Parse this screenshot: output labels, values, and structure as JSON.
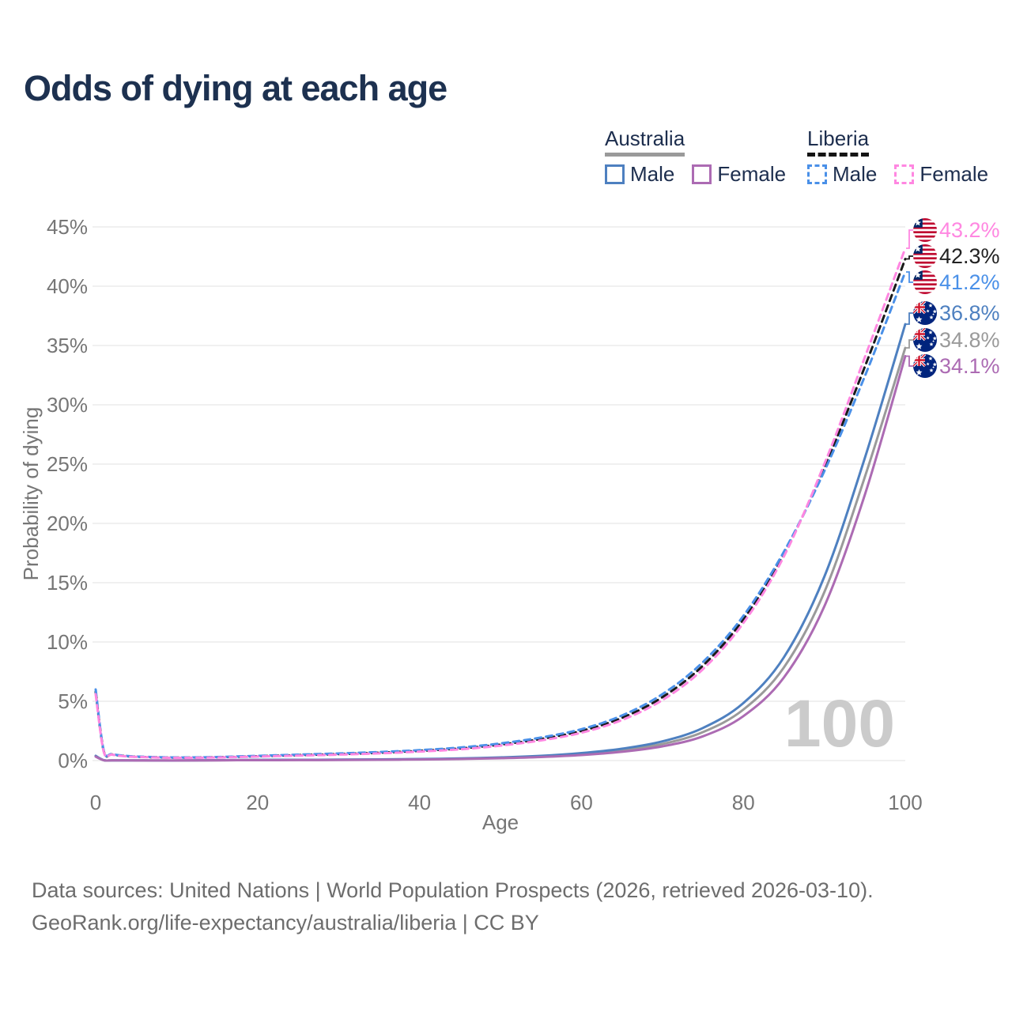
{
  "title": "Odds of dying at each age",
  "watermark_age": "100",
  "legend": {
    "groups": [
      {
        "label": "Australia",
        "underline_color": "#9a9a9a",
        "underline_style": "solid",
        "items": [
          {
            "label": "Male",
            "color": "#4e80c0",
            "dash": false
          },
          {
            "label": "Female",
            "color": "#ac6bb3",
            "dash": false
          }
        ]
      },
      {
        "label": "Liberia",
        "underline_color": "#141414",
        "underline_style": "dashed",
        "items": [
          {
            "label": "Male",
            "color": "#4a90e8",
            "dash": true
          },
          {
            "label": "Female",
            "color": "#ff87e1",
            "dash": true
          }
        ]
      }
    ]
  },
  "footer": {
    "line1": "Data sources: United Nations | World Population Prospects (2026, retrieved 2026-03-10).",
    "line2": "GeoRank.org/life-expectancy/australia/liberia | CC BY"
  },
  "chart_data": {
    "type": "line",
    "title": "Odds of dying at each age",
    "xlabel": "Age",
    "ylabel": "Probability of dying",
    "xlim": [
      0,
      100
    ],
    "ylim": [
      0,
      45
    ],
    "x_ticks": [
      0,
      20,
      40,
      60,
      80,
      100
    ],
    "y_ticks": [
      0,
      5,
      10,
      15,
      20,
      25,
      30,
      35,
      40,
      45
    ],
    "y_tick_suffix": "%",
    "grid": "horizontal",
    "legend_position": "top-right",
    "x": [
      0,
      1,
      2,
      4,
      6,
      8,
      10,
      15,
      20,
      25,
      30,
      35,
      40,
      45,
      50,
      55,
      60,
      65,
      70,
      75,
      80,
      85,
      90,
      95,
      100
    ],
    "series": [
      {
        "name": "Australia (both sexes)",
        "country": "Australia",
        "sex": "both",
        "color": "#9a9a9a",
        "dash": false,
        "flag": "australia",
        "end_label": "34.8%",
        "values": [
          0.37,
          0.028,
          0.018,
          0.014,
          0.011,
          0.01,
          0.009,
          0.025,
          0.048,
          0.057,
          0.068,
          0.085,
          0.112,
          0.158,
          0.235,
          0.35,
          0.55,
          0.87,
          1.4,
          2.4,
          4.3,
          7.85,
          14.2,
          23.9,
          34.8
        ]
      },
      {
        "name": "Australia Male",
        "country": "Australia",
        "sex": "male",
        "color": "#4e80c0",
        "dash": false,
        "flag": "australia",
        "end_label": "36.8%",
        "values": [
          0.4,
          0.03,
          0.02,
          0.015,
          0.012,
          0.01,
          0.01,
          0.03,
          0.06,
          0.07,
          0.082,
          0.1,
          0.13,
          0.18,
          0.27,
          0.4,
          0.63,
          1.0,
          1.62,
          2.75,
          4.85,
          8.7,
          15.5,
          25.5,
          36.8
        ]
      },
      {
        "name": "Australia Female",
        "country": "Australia",
        "sex": "female",
        "color": "#ac6bb3",
        "dash": false,
        "flag": "australia",
        "end_label": "34.1%",
        "values": [
          0.33,
          0.025,
          0.016,
          0.012,
          0.01,
          0.009,
          0.008,
          0.018,
          0.033,
          0.042,
          0.053,
          0.068,
          0.092,
          0.133,
          0.2,
          0.3,
          0.47,
          0.74,
          1.2,
          2.05,
          3.75,
          7.0,
          13.0,
          22.4,
          34.1
        ]
      },
      {
        "name": "Liberia (both sexes)",
        "country": "Liberia",
        "sex": "both",
        "color": "#1a1a1a",
        "dash": true,
        "flag": "liberia",
        "end_label": "42.3%",
        "values": [
          5.8,
          0.8,
          0.52,
          0.36,
          0.3,
          0.27,
          0.25,
          0.28,
          0.37,
          0.46,
          0.55,
          0.66,
          0.82,
          1.02,
          1.35,
          1.82,
          2.5,
          3.6,
          5.35,
          8.0,
          11.9,
          17.4,
          24.7,
          33.2,
          42.3
        ]
      },
      {
        "name": "Liberia Male",
        "country": "Liberia",
        "sex": "male",
        "color": "#4a90e8",
        "dash": true,
        "flag": "liberia",
        "end_label": "41.2%",
        "values": [
          6.0,
          0.85,
          0.55,
          0.38,
          0.32,
          0.28,
          0.26,
          0.3,
          0.4,
          0.5,
          0.6,
          0.72,
          0.88,
          1.1,
          1.45,
          1.95,
          2.65,
          3.8,
          5.6,
          8.3,
          12.2,
          17.6,
          24.4,
          32.4,
          41.2
        ]
      },
      {
        "name": "Liberia Female",
        "country": "Liberia",
        "sex": "female",
        "color": "#ff87e1",
        "dash": true,
        "flag": "liberia",
        "end_label": "43.2%",
        "values": [
          5.6,
          0.75,
          0.5,
          0.34,
          0.29,
          0.25,
          0.23,
          0.26,
          0.34,
          0.42,
          0.5,
          0.61,
          0.76,
          0.95,
          1.26,
          1.7,
          2.35,
          3.42,
          5.1,
          7.7,
          11.6,
          17.2,
          25.0,
          34.0,
          43.2
        ]
      }
    ]
  }
}
